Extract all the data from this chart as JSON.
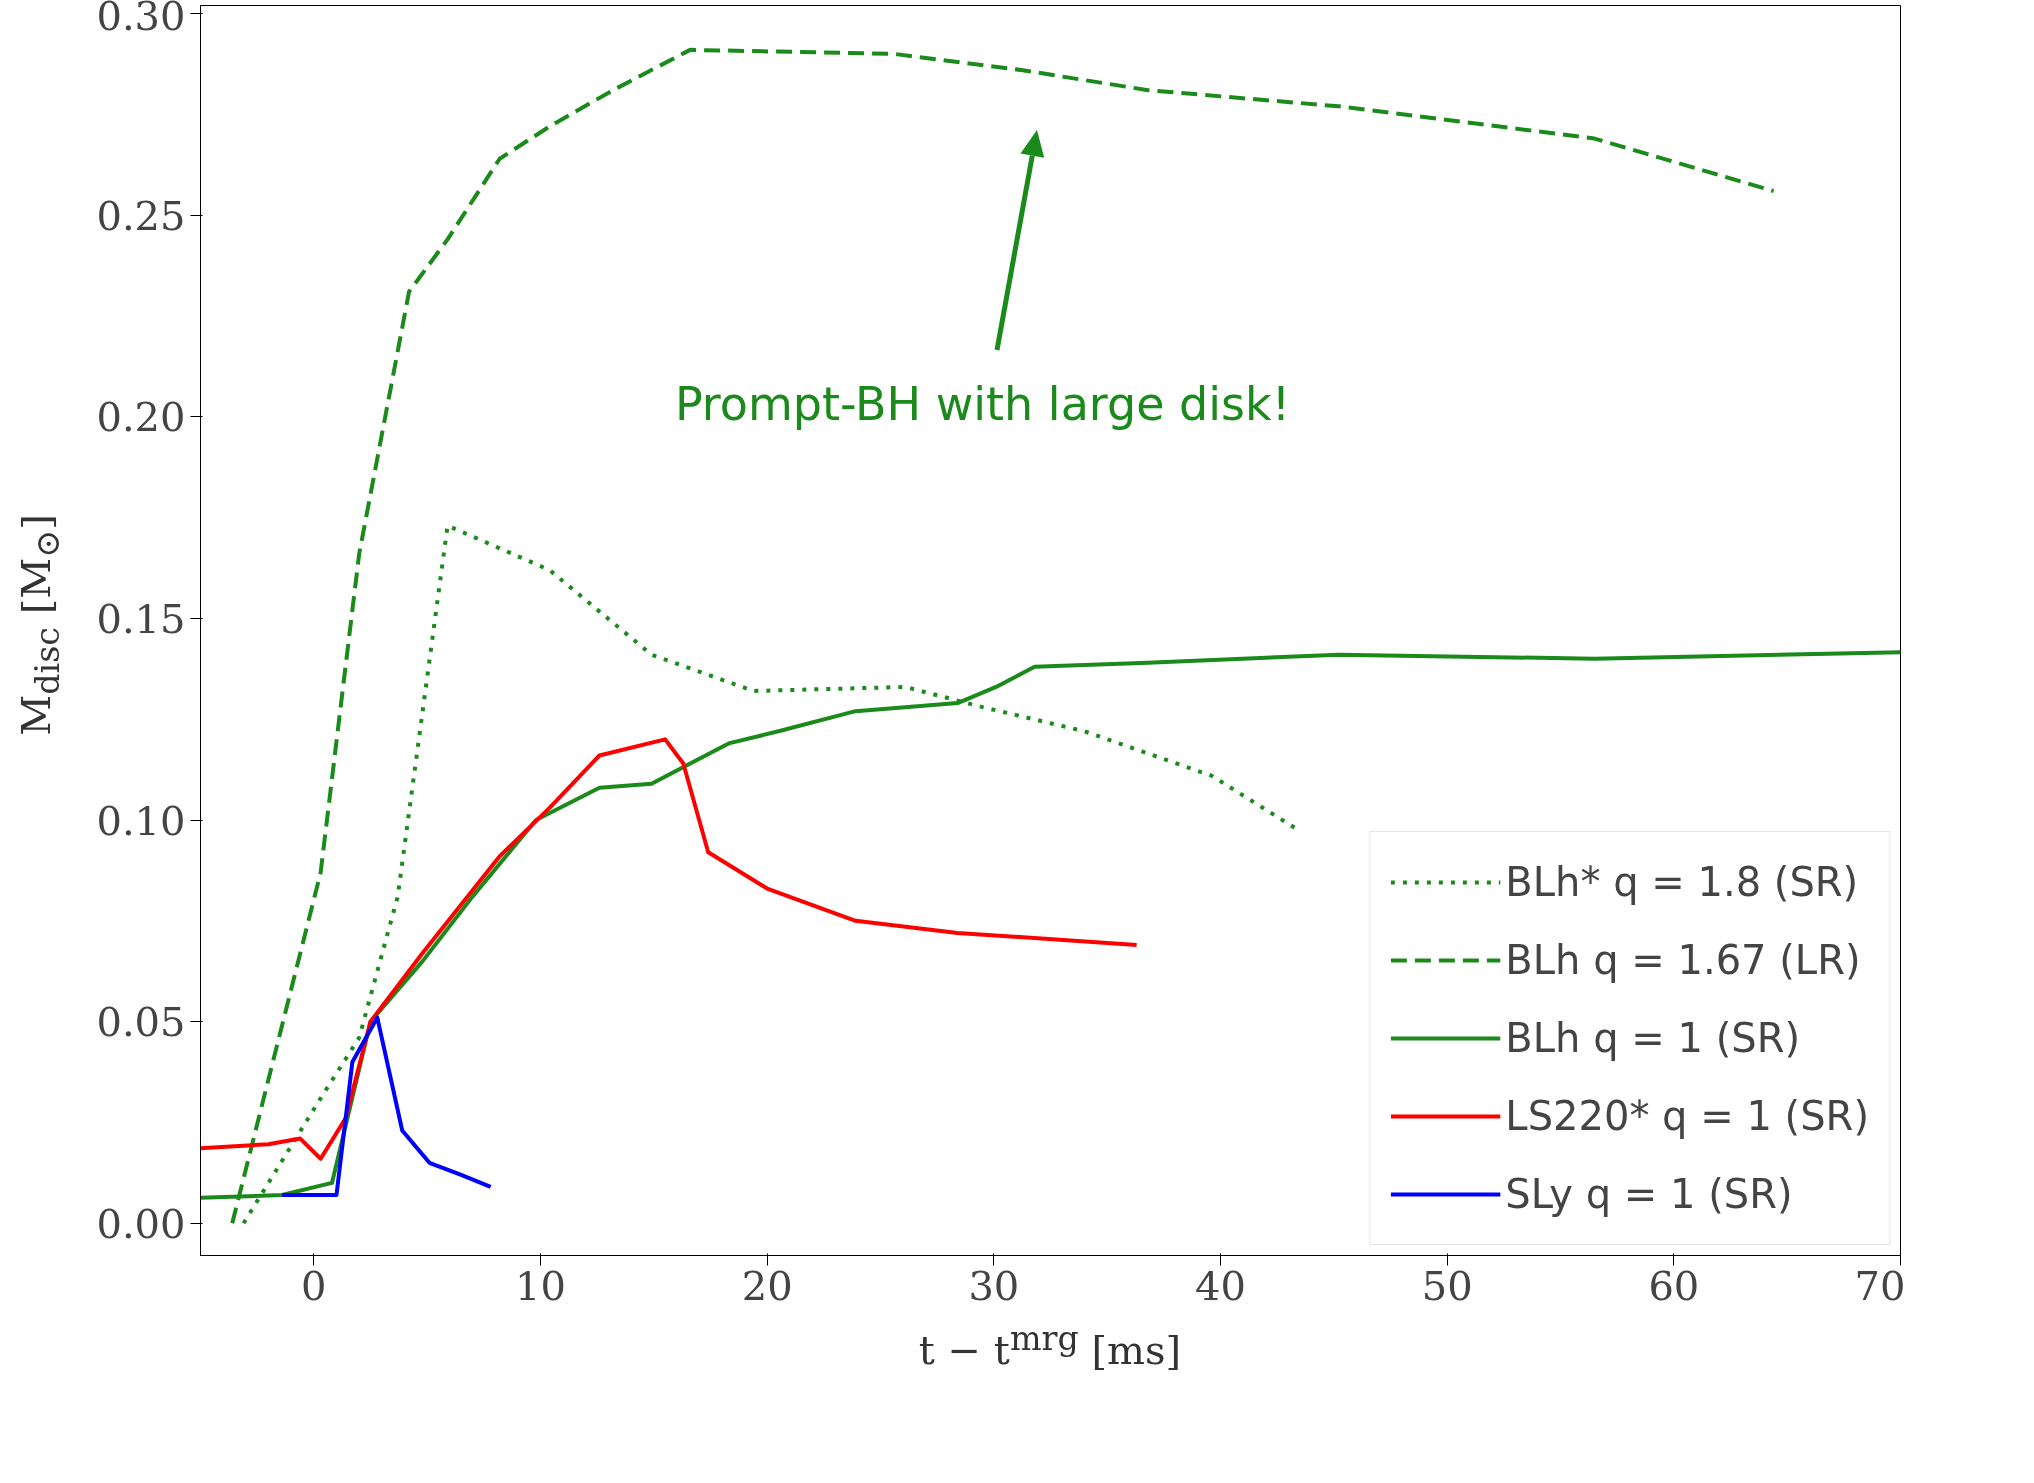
{
  "chart_data": {
    "type": "line",
    "xlabel": "t − t$^{mrg}$ [ms]",
    "ylabel": "M$_{disc}$ [M$_{⊙}$]",
    "xlim": [
      -5,
      70
    ],
    "ylim": [
      -0.008,
      0.302
    ],
    "xticks": [
      0,
      10,
      20,
      30,
      40,
      50,
      60,
      70
    ],
    "yticks": [
      {
        "value": 0,
        "label": "0.00"
      },
      {
        "value": 0.05,
        "label": "0.05"
      },
      {
        "value": 0.1,
        "label": "0.10"
      },
      {
        "value": 0.15,
        "label": "0.15"
      },
      {
        "value": 0.2,
        "label": "0.20"
      },
      {
        "value": 0.25,
        "label": "0.25"
      },
      {
        "value": 0.3,
        "label": "0.30"
      }
    ],
    "legend": "bottom right",
    "grid": false,
    "series": [
      {
        "name": "BLh* q = 1.8 (SR)",
        "color": "#1a8a1a",
        "line_style": "dotted",
        "x": [
          -3.1,
          0.3,
          2,
          3.7,
          5.9,
          10.4,
          14.9,
          19.4,
          26.1,
          29.5,
          34,
          39.6,
          43.3
        ],
        "values": [
          0.0,
          0.031,
          0.046,
          0.081,
          0.173,
          0.162,
          0.141,
          0.132,
          0.133,
          0.128,
          0.122,
          0.111,
          0.098
        ]
      },
      {
        "name": "BLh q = 1.67 (LR)",
        "color": "#1a8a1a",
        "line_style": "dashed",
        "x": [
          -3.6,
          0.3,
          2,
          4.2,
          5.9,
          8.2,
          10.4,
          13.2,
          16.6,
          25.6,
          31.2,
          36.8,
          45.2,
          56.5,
          64.4
        ],
        "values": [
          0.0,
          0.087,
          0.166,
          0.231,
          0.244,
          0.264,
          0.272,
          0.281,
          0.291,
          0.29,
          0.286,
          0.281,
          0.277,
          0.269,
          0.256
        ]
      },
      {
        "name": "BLh q = 1 (SR)",
        "color": "#1a8a1a",
        "line_style": "solid",
        "x": [
          -5,
          -1.4,
          0.8,
          2.5,
          4.8,
          7,
          9.8,
          12.6,
          14.9,
          18.3,
          20.5,
          23.9,
          28.4,
          30.1,
          31.8,
          36.8,
          45.2,
          56.5,
          70
        ],
        "values": [
          0.0063,
          0.007,
          0.01,
          0.05,
          0.065,
          0.081,
          0.1,
          0.108,
          0.109,
          0.119,
          0.122,
          0.127,
          0.129,
          0.133,
          0.138,
          0.139,
          0.141,
          0.14,
          0.1416
        ]
      },
      {
        "name": "LS220* q = 1 (SR)",
        "color": "#ff0000",
        "line_style": "solid",
        "x": [
          -5,
          -2,
          -0.6,
          0.3,
          1.4,
          2.5,
          4.8,
          8.2,
          10.4,
          12.6,
          15.5,
          16.3,
          17.4,
          20,
          23.9,
          28.4,
          36.3
        ],
        "values": [
          0.0186,
          0.0196,
          0.021,
          0.016,
          0.026,
          0.05,
          0.067,
          0.091,
          0.103,
          0.116,
          0.12,
          0.114,
          0.092,
          0.083,
          0.075,
          0.072,
          0.069
        ]
      },
      {
        "name": "SLy q = 1 (SR)",
        "color": "#0000ff",
        "line_style": "solid",
        "x": [
          -1.4,
          1,
          1.7,
          2.8,
          3.9,
          5.1,
          6.5,
          7.8
        ],
        "values": [
          0.007,
          0.007,
          0.04,
          0.051,
          0.023,
          0.015,
          0.012,
          0.009
        ]
      }
    ],
    "annotations": [
      "Prompt-BH with large disk!"
    ]
  }
}
